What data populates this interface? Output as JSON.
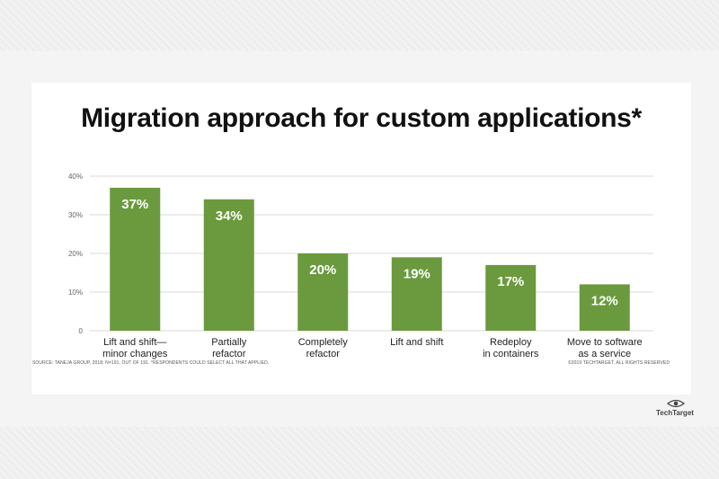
{
  "chart_data": {
    "type": "bar",
    "title": "Migration approach for custom applications*",
    "categories": [
      [
        "Lift and shift—",
        "minor changes"
      ],
      [
        "Partially",
        "refactor"
      ],
      [
        "Completely",
        "refactor"
      ],
      [
        "Lift and shift"
      ],
      [
        "Redeploy",
        "in containers"
      ],
      [
        "Move to software",
        "as a service"
      ]
    ],
    "values": [
      37,
      34,
      20,
      19,
      17,
      12
    ],
    "value_labels": [
      "37%",
      "34%",
      "20%",
      "19%",
      "17%",
      "12%"
    ],
    "yticks": [
      {
        "value": 0,
        "label": "0"
      },
      {
        "value": 10,
        "label": "10%"
      },
      {
        "value": 20,
        "label": "20%"
      },
      {
        "value": 30,
        "label": "30%"
      },
      {
        "value": 40,
        "label": "40%"
      }
    ],
    "ylim": [
      0,
      40
    ],
    "grid": true,
    "bar_color": "#6a9a3d",
    "grid_color": "#d9d9d9"
  },
  "footer": {
    "source": "SOURCE: TANEJA GROUP, 2018; N=191, OUT OF 191. *RESPONDENTS COULD SELECT ALL THAT APPLIED.",
    "copyright": "©2019 TECHTARGET. ALL RIGHTS RESERVED"
  },
  "logo": {
    "brand": "TechTarget",
    "icon": "eye-icon"
  }
}
